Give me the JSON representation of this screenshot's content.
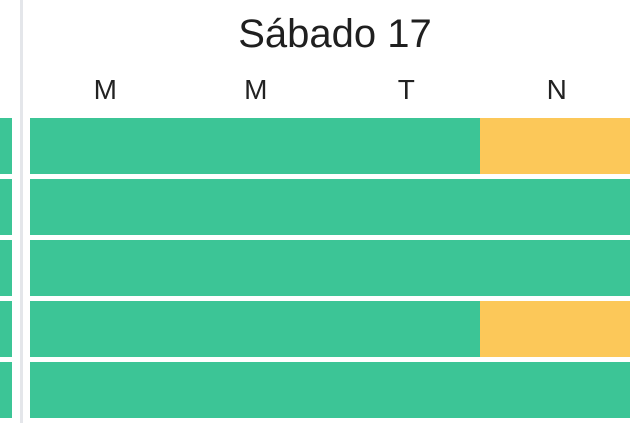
{
  "day": {
    "title": "Sábado 17"
  },
  "shifts": [
    "M",
    "M",
    "T",
    "N"
  ],
  "colors": {
    "available": "#3cc596",
    "partial": "#fcc859",
    "divider": "#e4e6ea"
  },
  "rows": [
    {
      "segments": [
        "available",
        "available",
        "available",
        "partial"
      ]
    },
    {
      "segments": [
        "available",
        "available",
        "available",
        "available"
      ]
    },
    {
      "segments": [
        "available",
        "available",
        "available",
        "available"
      ]
    },
    {
      "segments": [
        "available",
        "available",
        "available",
        "partial"
      ]
    },
    {
      "segments": [
        "available",
        "available",
        "available",
        "available"
      ]
    }
  ]
}
